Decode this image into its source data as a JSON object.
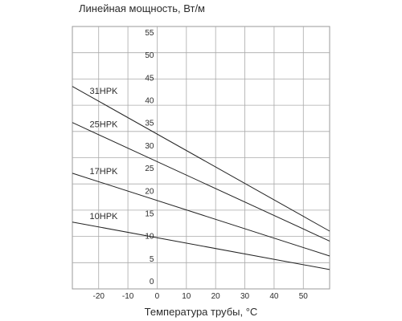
{
  "chart_data": {
    "type": "line",
    "ylabel": "Линейная мощность, Вт/м",
    "xlabel": "Температура трубы, °С",
    "xlim": [
      -29,
      59
    ],
    "ylim": [
      0,
      55
    ],
    "x_ticks": [
      -20,
      -10,
      0,
      10,
      20,
      30,
      40,
      50
    ],
    "y_ticks": [
      0,
      5,
      10,
      15,
      20,
      25,
      30,
      35,
      40,
      45,
      50,
      55
    ],
    "grid": true,
    "series": [
      {
        "name": "31HPK",
        "x": [
          -29,
          59
        ],
        "y": [
          43.0,
          11.0
        ]
      },
      {
        "name": "25HPK",
        "x": [
          -29,
          59
        ],
        "y": [
          35.0,
          8.8
        ]
      },
      {
        "name": "17HPK",
        "x": [
          -29,
          59
        ],
        "y": [
          23.8,
          5.5
        ]
      },
      {
        "name": "10HPK",
        "x": [
          -29,
          59
        ],
        "y": [
          13.0,
          2.5
        ]
      }
    ]
  }
}
